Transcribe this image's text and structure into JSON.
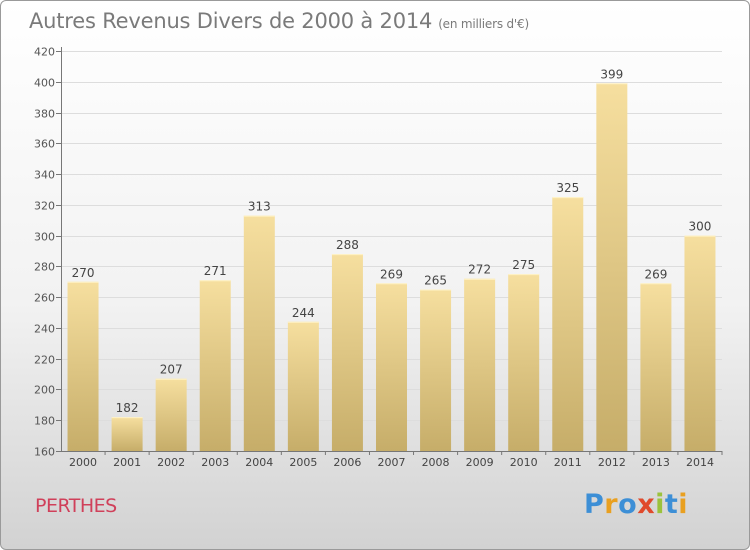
{
  "header": {
    "title": "Autres Revenus Divers de 2000 à 2014",
    "subtitle": "(en milliers d'€)"
  },
  "footer": {
    "town": "PERTHES",
    "logo": "Proxiti"
  },
  "colors": {
    "bar_top": "#f6df9f",
    "bar_bottom": "#c6ad69",
    "axis": "#777777",
    "grid": "#dddddd",
    "title": "#7a7a7a",
    "town": "#d0405a",
    "logo_letters": [
      "#3d8fd6",
      "#e9a020",
      "#3d8fd6",
      "#e04a2c",
      "#9bc23c",
      "#3d8fd6",
      "#e9a020"
    ]
  },
  "chart_data": {
    "type": "bar",
    "title": "Autres Revenus Divers de 2000 à 2014",
    "subtitle": "(en milliers d'€)",
    "xlabel": "",
    "ylabel": "",
    "categories": [
      "2000",
      "2001",
      "2002",
      "2003",
      "2004",
      "2005",
      "2006",
      "2007",
      "2008",
      "2009",
      "2010",
      "2011",
      "2012",
      "2013",
      "2014"
    ],
    "values": [
      270,
      182,
      207,
      271,
      313,
      244,
      288,
      269,
      265,
      272,
      275,
      325,
      399,
      269,
      300
    ],
    "ylim": [
      160,
      420
    ],
    "yticks": [
      160,
      180,
      200,
      220,
      240,
      260,
      280,
      300,
      320,
      340,
      360,
      380,
      400,
      420
    ],
    "grid": true,
    "data_labels": true
  }
}
